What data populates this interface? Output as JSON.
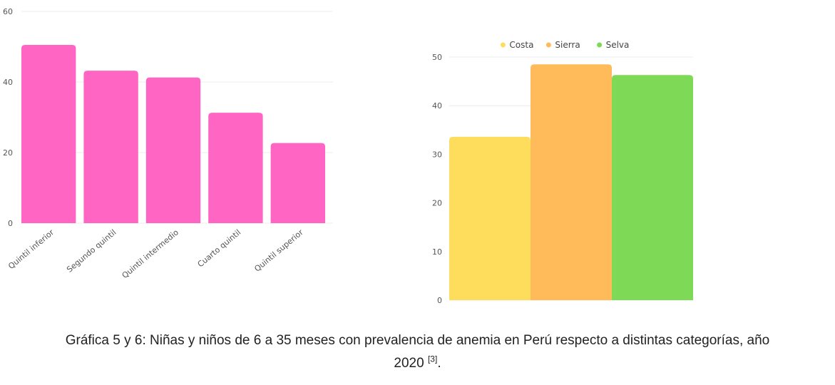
{
  "chart_data": [
    {
      "type": "bar",
      "categories": [
        "Quintil inferior",
        "Segundo quintil",
        "Quintil intermedio",
        "Cuarto quintil",
        "Quintil superior"
      ],
      "values": [
        50.5,
        43.2,
        41.3,
        31.3,
        22.7
      ],
      "yticks": [
        "0",
        "20",
        "40",
        "60"
      ],
      "ylim": [
        0,
        60
      ],
      "grid": true,
      "legend": "none",
      "color": "#ff66c4"
    },
    {
      "type": "bar",
      "categories": [
        ""
      ],
      "series": [
        {
          "name": "Costa",
          "values": [
            33.6
          ],
          "color": "#ffdd5c"
        },
        {
          "name": "Sierra",
          "values": [
            48.5
          ],
          "color": "#ffbb5a"
        },
        {
          "name": "Selva",
          "values": [
            46.3
          ],
          "color": "#7ed957"
        }
      ],
      "yticks": [
        "0",
        "10",
        "20",
        "30",
        "40",
        "50"
      ],
      "ylim": [
        0,
        50
      ],
      "grid": true,
      "legend": "top-center"
    }
  ],
  "caption": {
    "line1": "Gráfica  5 y 6: Niñas y niños de 6 a 35 meses con prevalencia de anemia en Perú respecto a distintas categorías, año",
    "line2": "2020",
    "ref": "[3]",
    "tail": "."
  }
}
